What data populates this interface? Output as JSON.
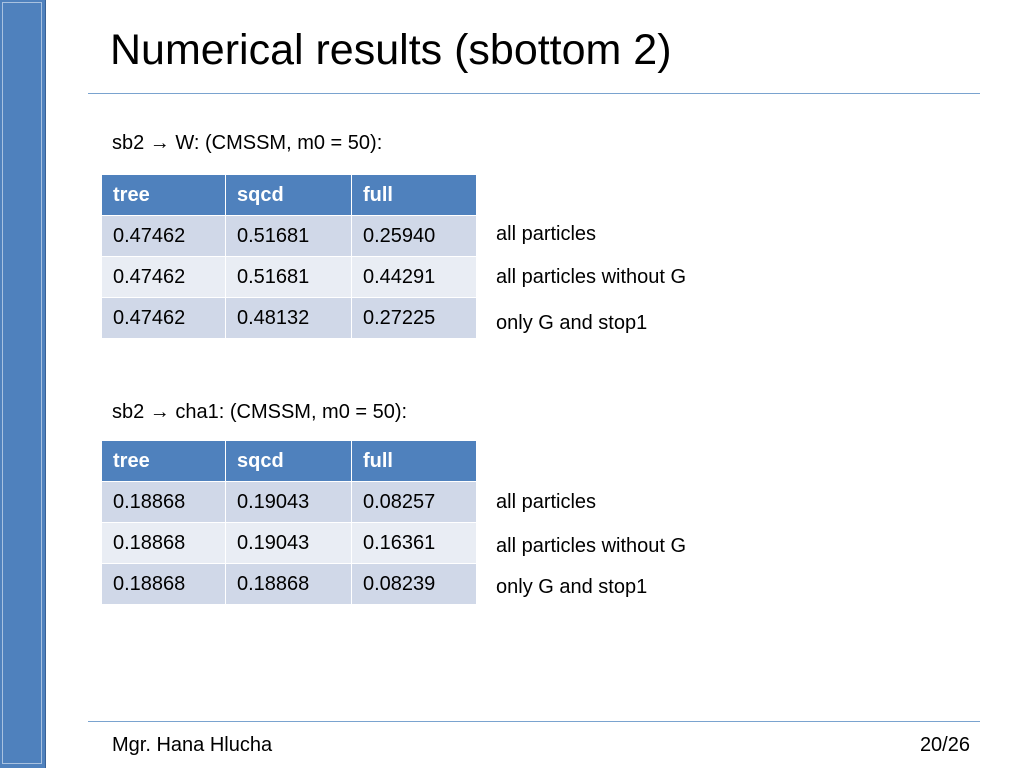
{
  "slide": {
    "title": "Numerical results (sbottom 2)",
    "footer": {
      "author": "Mgr. Hana Hlucha",
      "page": "20/26"
    }
  },
  "tables": [
    {
      "caption": "sb2 → W: (CMSSM, m0 = 50):",
      "headers": [
        "tree",
        "sqcd",
        "full"
      ],
      "rows": [
        {
          "cells": [
            "0.47462",
            "0.51681",
            "0.25940"
          ],
          "note": "all particles"
        },
        {
          "cells": [
            "0.47462",
            "0.51681",
            "0.44291"
          ],
          "note": "all particles without G"
        },
        {
          "cells": [
            "0.47462",
            "0.48132",
            "0.27225"
          ],
          "note": "only G and stop1"
        }
      ]
    },
    {
      "caption": "sb2 → cha1: (CMSSM, m0 = 50):",
      "headers": [
        "tree",
        "sqcd",
        "full"
      ],
      "rows": [
        {
          "cells": [
            "0.18868",
            "0.19043",
            "0.08257"
          ],
          "note": "all particles"
        },
        {
          "cells": [
            "0.18868",
            "0.19043",
            "0.16361"
          ],
          "note": "all particles without G"
        },
        {
          "cells": [
            "0.18868",
            "0.18868",
            "0.08239"
          ],
          "note": "only G and stop1"
        }
      ]
    }
  ],
  "colors": {
    "accent": "#4f81bd",
    "row_dark": "#d0d8e8",
    "row_light": "#e9edf4",
    "rule": "#7aa3cf"
  }
}
